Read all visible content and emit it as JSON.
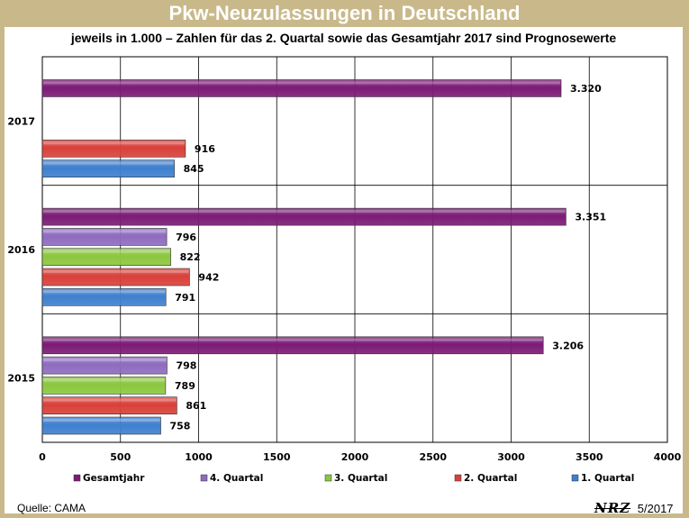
{
  "header": {
    "title": "Pkw-Neuzulassungen in Deutschland",
    "subtitle": "jeweils in 1.000 – Zahlen für das 2. Quartal sowie das Gesamtjahr 2017 sind Prognosewerte"
  },
  "footer": {
    "source": "Quelle: CAMA",
    "logo": "NRZ",
    "date": "5/2017"
  },
  "chart_data": {
    "type": "bar",
    "orientation": "horizontal",
    "title": "Pkw-Neuzulassungen in Deutschland",
    "subtitle": "jeweils in 1.000 – Zahlen für das 2. Quartal sowie das Gesamtjahr 2017 sind Prognosewerte",
    "categories": [
      "2015",
      "2016",
      "2017"
    ],
    "xlim": [
      0,
      4000
    ],
    "xticks": [
      0,
      500,
      1000,
      1500,
      2000,
      2500,
      3000,
      3500,
      4000
    ],
    "grid": true,
    "legend_position": "bottom",
    "series": [
      {
        "name": "1. Quartal",
        "color": "#3f7fcf",
        "values": [
          758,
          791,
          845
        ],
        "labels": [
          "758",
          "791",
          "845"
        ]
      },
      {
        "name": "2. Quartal",
        "color": "#d9403a",
        "values": [
          861,
          942,
          916
        ],
        "labels": [
          "861",
          "942",
          "916"
        ]
      },
      {
        "name": "3. Quartal",
        "color": "#8cc63f",
        "values": [
          789,
          822,
          null
        ],
        "labels": [
          "789",
          "822",
          ""
        ]
      },
      {
        "name": "4. Quartal",
        "color": "#8e6bbf",
        "values": [
          798,
          796,
          null
        ],
        "labels": [
          "798",
          "796",
          ""
        ]
      },
      {
        "name": "Gesamtjahr",
        "color": "#7b1b75",
        "values": [
          3206,
          3351,
          3320
        ],
        "labels": [
          "3.206",
          "3.351",
          "3.320"
        ]
      }
    ],
    "legend_order": [
      "Gesamtjahr",
      "4. Quartal",
      "3. Quartal",
      "2. Quartal",
      "1. Quartal"
    ]
  }
}
